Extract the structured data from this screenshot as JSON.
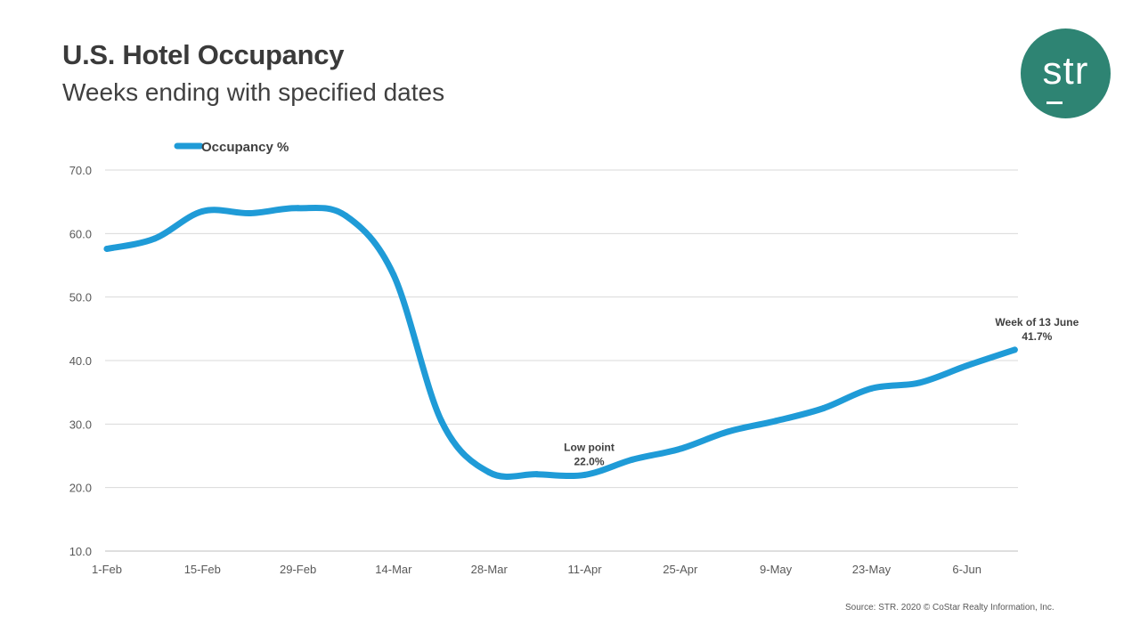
{
  "header": {
    "title": "U.S. Hotel Occupancy",
    "subtitle": "Weeks ending with specified dates"
  },
  "logo": {
    "text": "str",
    "color": "#2e8473"
  },
  "source": "Source: STR. 2020 © CoStar Realty Information, Inc.",
  "chart_data": {
    "type": "line",
    "title": "U.S. Hotel Occupancy",
    "subtitle": "Weeks ending with specified dates",
    "xlabel": "",
    "ylabel": "",
    "x": [
      "1-Feb",
      "8-Feb",
      "15-Feb",
      "22-Feb",
      "29-Feb",
      "7-Mar",
      "14-Mar",
      "21-Mar",
      "28-Mar",
      "4-Apr",
      "11-Apr",
      "18-Apr",
      "25-Apr",
      "2-May",
      "9-May",
      "16-May",
      "23-May",
      "30-May",
      "6-Jun",
      "13-Jun"
    ],
    "categories_labeled": [
      "1-Feb",
      "15-Feb",
      "29-Feb",
      "14-Mar",
      "28-Mar",
      "11-Apr",
      "25-Apr",
      "9-May",
      "23-May",
      "6-Jun"
    ],
    "series": [
      {
        "name": "Occupancy %",
        "color": "#1f9bd7",
        "values": [
          57.6,
          59.2,
          63.5,
          63.2,
          64.0,
          62.8,
          53.5,
          30.5,
          22.4,
          22.1,
          22.0,
          24.4,
          26.1,
          28.8,
          30.5,
          32.5,
          35.6,
          36.5,
          39.2,
          41.7
        ]
      }
    ],
    "ylim": [
      10,
      70
    ],
    "yticks": [
      "10.0",
      "20.0",
      "30.0",
      "40.0",
      "50.0",
      "60.0",
      "70.0"
    ],
    "grid": true,
    "legend": "top-left",
    "annotations": [
      {
        "x": "11-Apr",
        "value": 22.0,
        "line1": "Low point",
        "line2": "22.0%"
      },
      {
        "x": "13-Jun",
        "value": 41.7,
        "line1": "Week of 13 June",
        "line2": "41.7%"
      }
    ]
  }
}
